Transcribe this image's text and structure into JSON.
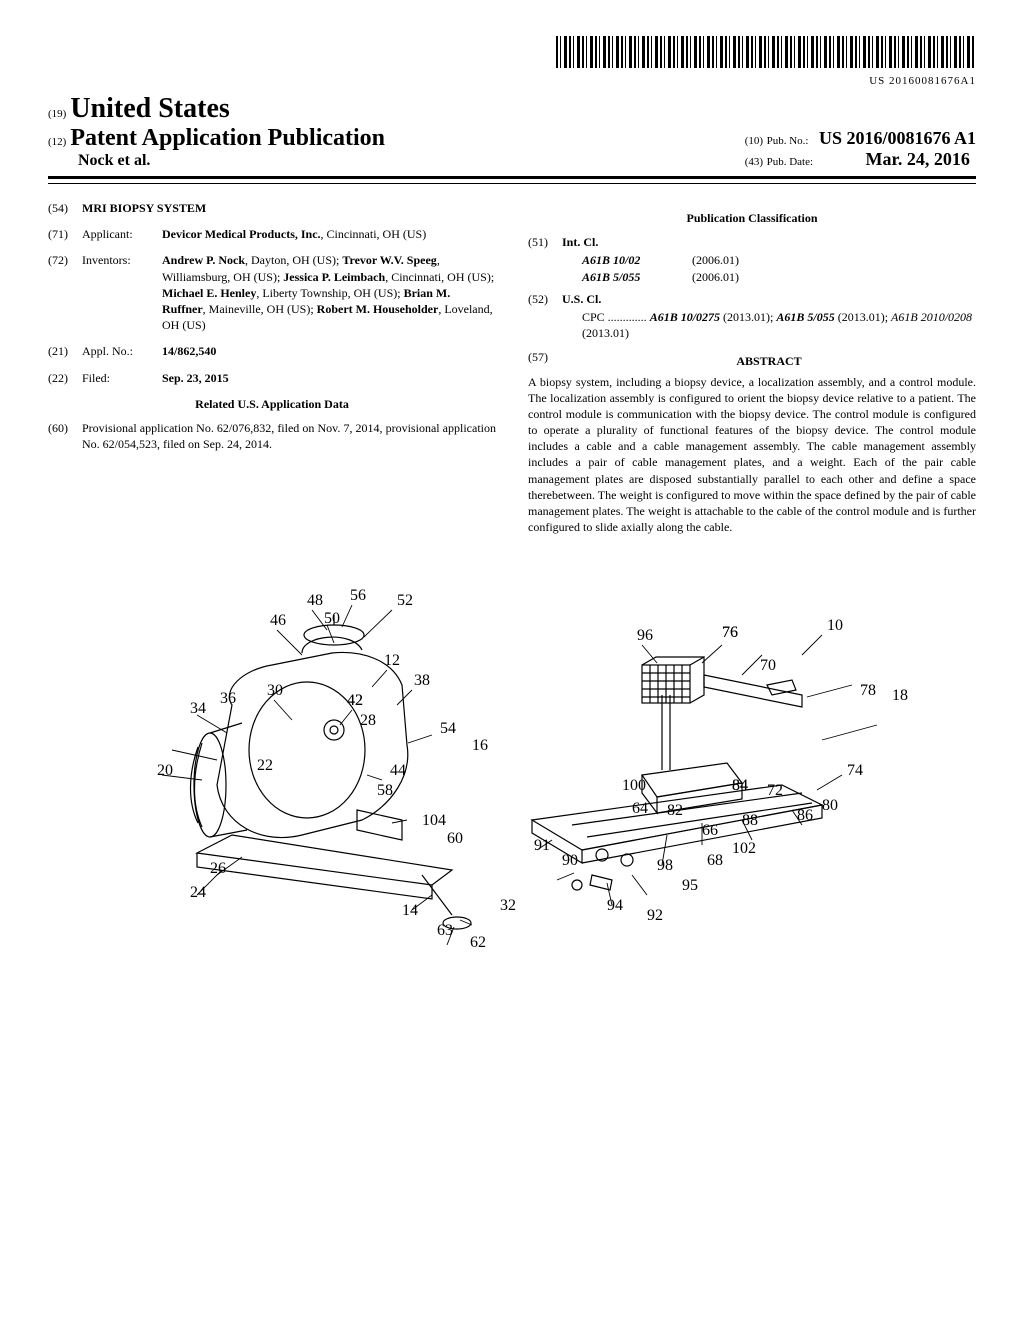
{
  "barcode": {
    "number": "US 20160081676A1"
  },
  "header": {
    "line19": "(19)",
    "country": "United States",
    "line12": "(12)",
    "pubtype": "Patent Application Publication",
    "authors": "Nock et al.",
    "line10": "(10)",
    "pubno_label": "Pub. No.:",
    "pubno": "US 2016/0081676 A1",
    "line43": "(43)",
    "pubdate_label": "Pub. Date:",
    "pubdate": "Mar. 24, 2016"
  },
  "left": {
    "f54": {
      "num": "(54)",
      "label": "",
      "title": "MRI BIOPSY SYSTEM"
    },
    "f71": {
      "num": "(71)",
      "label": "Applicant:",
      "value_bold": "Devicor Medical Products, Inc.",
      "value_rest": ", Cincinnati, OH (US)"
    },
    "f72": {
      "num": "(72)",
      "label": "Inventors:",
      "inventors": [
        {
          "name": "Andrew P. Nock",
          "loc": ", Dayton, OH (US); "
        },
        {
          "name": "Trevor W.V. Speeg",
          "loc": ", Williamsburg, OH (US); "
        },
        {
          "name": "Jessica P. Leimbach",
          "loc": ", Cincinnati, OH (US); "
        },
        {
          "name": "Michael E. Henley",
          "loc": ", Liberty Township, OH (US); "
        },
        {
          "name": "Brian M. Ruffner",
          "loc": ", Maineville, OH (US); "
        },
        {
          "name": "Robert M. Householder",
          "loc": ", Loveland, OH (US)"
        }
      ]
    },
    "f21": {
      "num": "(21)",
      "label": "Appl. No.:",
      "value": "14/862,540"
    },
    "f22": {
      "num": "(22)",
      "label": "Filed:",
      "value": "Sep. 23, 2015"
    },
    "related_title": "Related U.S. Application Data",
    "f60": {
      "num": "(60)",
      "value": "Provisional application No. 62/076,832, filed on Nov. 7, 2014, provisional application No. 62/054,523, filed on Sep. 24, 2014."
    }
  },
  "right": {
    "pubclass_title": "Publication Classification",
    "f51": {
      "num": "(51)",
      "label": "Int. Cl.",
      "rows": [
        {
          "code": "A61B 10/02",
          "ver": "(2006.01)"
        },
        {
          "code": "A61B 5/055",
          "ver": "(2006.01)"
        }
      ]
    },
    "f52": {
      "num": "(52)",
      "label": "U.S. Cl.",
      "cpc_prefix": "CPC .............",
      "cpc_main": "A61B 10/0275",
      "cpc_main_yr": " (2013.01); ",
      "cpc_2": "A61B 5/055",
      "cpc_2_yr": " (2013.01); ",
      "cpc_3": "A61B 2010/0208",
      "cpc_3_yr": " (2013.01)"
    },
    "f57": {
      "num": "(57)",
      "label": "ABSTRACT"
    },
    "abstract": "A biopsy system, including a biopsy device, a localization assembly, and a control module. The localization assembly is configured to orient the biopsy device relative to a patient. The control module is communication with the biopsy device. The control module is configured to operate a plurality of functional features of the biopsy device. The control module includes a cable and a cable management assembly. The cable management assembly includes a pair of cable management plates, and a weight. Each of the pair cable management plates are disposed substantially parallel to each other and define a space therebetween. The weight is configured to move within the space defined by the pair of cable management plates. The weight is attachable to the cable of the control module and is further configured to slide axially along the cable."
  },
  "figure": {
    "stroke": "#000000",
    "stroke_width": 1.2,
    "labels": [
      "48",
      "56",
      "52",
      "46",
      "50",
      "12",
      "38",
      "54",
      "34",
      "36",
      "30",
      "42",
      "28",
      "42",
      "16",
      "20",
      "22",
      "58",
      "44",
      "104",
      "60",
      "26",
      "24",
      "14",
      "63",
      "62",
      "32",
      "91",
      "90",
      "94",
      "92",
      "95",
      "98",
      "68",
      "102",
      "66",
      "88",
      "82",
      "64",
      "100",
      "84",
      "96",
      "76",
      "76",
      "70",
      "84",
      "72",
      "86",
      "80",
      "74",
      "78",
      "18",
      "10"
    ]
  }
}
